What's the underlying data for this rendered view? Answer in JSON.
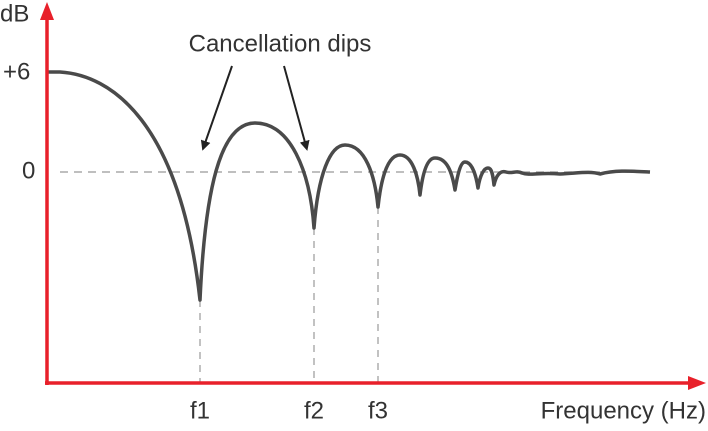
{
  "axes": {
    "y_label": "dB",
    "y_plus": "+6",
    "y_zero": "0",
    "x_label": "Frequency (Hz)"
  },
  "annotation": "Cancellation dips",
  "frequencies": [
    "f1",
    "f2",
    "f3"
  ]
}
